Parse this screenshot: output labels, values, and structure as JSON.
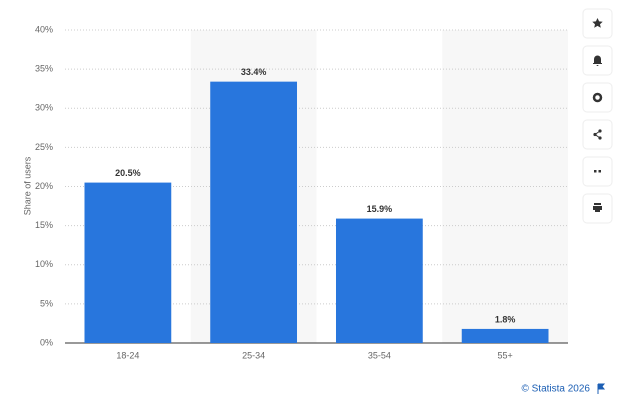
{
  "chart_data": {
    "type": "bar",
    "y_label": "Share of users",
    "categories": [
      "18-24",
      "25-34",
      "35-54",
      "55+"
    ],
    "values": [
      20.5,
      33.4,
      15.9,
      1.8
    ],
    "value_labels": [
      "20.5%",
      "33.4%",
      "15.9%",
      "1.8%"
    ],
    "color": "#2876dd",
    "ylim": [
      0,
      40
    ],
    "yticks": [
      {
        "value": 0,
        "label": "0%"
      },
      {
        "value": 5,
        "label": "5%"
      },
      {
        "value": 10,
        "label": "10%"
      },
      {
        "value": 15,
        "label": "15%"
      },
      {
        "value": 20,
        "label": "20%"
      },
      {
        "value": 25,
        "label": "25%"
      },
      {
        "value": 30,
        "label": "30%"
      },
      {
        "value": 35,
        "label": "35%"
      },
      {
        "value": 40,
        "label": "40%"
      }
    ],
    "grid": true,
    "source": "© Statista 2026"
  }
}
